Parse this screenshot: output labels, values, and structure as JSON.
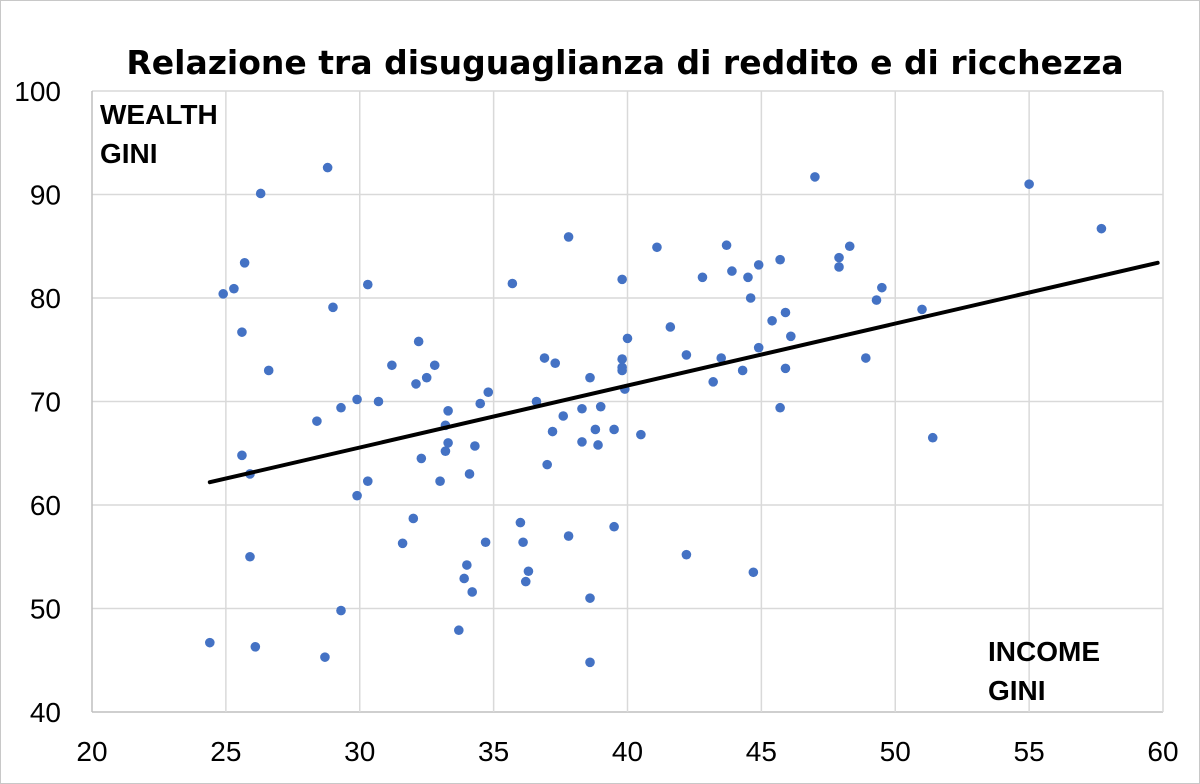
{
  "chart_data": {
    "type": "scatter",
    "title": "Relazione tra disuguaglianza di reddito e di ricchezza",
    "y_axis_note": [
      "WEALTH",
      "GINI"
    ],
    "x_axis_note": [
      "INCOME",
      "GINI"
    ],
    "xlim": [
      20,
      60
    ],
    "ylim": [
      40,
      100
    ],
    "x_ticks": [
      20,
      25,
      30,
      35,
      40,
      45,
      50,
      55,
      60
    ],
    "y_ticks": [
      40,
      50,
      60,
      70,
      80,
      90,
      100
    ],
    "grid": true,
    "point_color": "#4472c4",
    "trendline_color": "#000000",
    "trendline": {
      "x": [
        24.4,
        59.8
      ],
      "y": [
        62.2,
        83.4
      ]
    },
    "points": [
      [
        24.4,
        46.7
      ],
      [
        24.9,
        80.4
      ],
      [
        25.3,
        80.9
      ],
      [
        25.6,
        76.7
      ],
      [
        25.6,
        64.8
      ],
      [
        25.7,
        83.4
      ],
      [
        25.9,
        63.0
      ],
      [
        25.9,
        55.0
      ],
      [
        26.1,
        46.3
      ],
      [
        26.3,
        90.1
      ],
      [
        26.6,
        73.0
      ],
      [
        28.4,
        68.1
      ],
      [
        28.7,
        45.3
      ],
      [
        28.8,
        92.6
      ],
      [
        29.0,
        79.1
      ],
      [
        29.3,
        69.4
      ],
      [
        29.3,
        49.8
      ],
      [
        29.9,
        70.2
      ],
      [
        29.9,
        60.9
      ],
      [
        30.3,
        81.3
      ],
      [
        30.3,
        62.3
      ],
      [
        30.7,
        70.0
      ],
      [
        31.2,
        73.5
      ],
      [
        31.6,
        56.3
      ],
      [
        32.0,
        58.7
      ],
      [
        32.1,
        71.7
      ],
      [
        32.2,
        75.8
      ],
      [
        32.3,
        64.5
      ],
      [
        32.5,
        72.3
      ],
      [
        32.8,
        73.5
      ],
      [
        33.0,
        62.3
      ],
      [
        33.2,
        67.7
      ],
      [
        33.2,
        65.2
      ],
      [
        33.3,
        66.0
      ],
      [
        33.3,
        69.1
      ],
      [
        33.7,
        47.9
      ],
      [
        33.9,
        52.9
      ],
      [
        34.0,
        54.2
      ],
      [
        34.1,
        63.0
      ],
      [
        34.2,
        51.6
      ],
      [
        34.3,
        65.7
      ],
      [
        34.5,
        69.8
      ],
      [
        34.7,
        56.4
      ],
      [
        34.8,
        70.9
      ],
      [
        35.7,
        81.4
      ],
      [
        36.0,
        58.3
      ],
      [
        36.1,
        56.4
      ],
      [
        36.2,
        52.6
      ],
      [
        36.3,
        53.6
      ],
      [
        36.6,
        70.0
      ],
      [
        36.9,
        74.2
      ],
      [
        37.0,
        63.9
      ],
      [
        37.2,
        67.1
      ],
      [
        37.3,
        73.7
      ],
      [
        37.6,
        68.6
      ],
      [
        37.8,
        85.9
      ],
      [
        37.8,
        57.0
      ],
      [
        38.3,
        66.1
      ],
      [
        38.3,
        69.3
      ],
      [
        38.6,
        72.3
      ],
      [
        38.6,
        51.0
      ],
      [
        38.6,
        44.8
      ],
      [
        38.8,
        67.3
      ],
      [
        38.9,
        65.8
      ],
      [
        39.0,
        69.5
      ],
      [
        39.5,
        67.3
      ],
      [
        39.5,
        57.9
      ],
      [
        39.8,
        81.8
      ],
      [
        39.8,
        74.1
      ],
      [
        39.8,
        73.0
      ],
      [
        39.8,
        73.3
      ],
      [
        39.9,
        71.2
      ],
      [
        40.0,
        76.1
      ],
      [
        40.5,
        66.8
      ],
      [
        41.1,
        84.9
      ],
      [
        41.6,
        77.2
      ],
      [
        42.2,
        74.5
      ],
      [
        42.2,
        55.2
      ],
      [
        42.8,
        82.0
      ],
      [
        43.2,
        71.9
      ],
      [
        43.5,
        74.2
      ],
      [
        43.7,
        85.1
      ],
      [
        43.9,
        82.6
      ],
      [
        44.3,
        73.0
      ],
      [
        44.5,
        82.0
      ],
      [
        44.6,
        80.0
      ],
      [
        44.7,
        53.5
      ],
      [
        44.9,
        83.2
      ],
      [
        44.9,
        75.2
      ],
      [
        45.4,
        77.8
      ],
      [
        45.7,
        83.7
      ],
      [
        45.7,
        69.4
      ],
      [
        45.9,
        78.6
      ],
      [
        45.9,
        73.2
      ],
      [
        46.1,
        76.3
      ],
      [
        47.0,
        91.7
      ],
      [
        47.9,
        83.0
      ],
      [
        47.9,
        83.9
      ],
      [
        48.3,
        85.0
      ],
      [
        48.9,
        74.2
      ],
      [
        49.3,
        79.8
      ],
      [
        49.5,
        81.0
      ],
      [
        51.0,
        78.9
      ],
      [
        51.4,
        66.5
      ],
      [
        55.0,
        91.0
      ],
      [
        57.7,
        86.7
      ]
    ]
  }
}
